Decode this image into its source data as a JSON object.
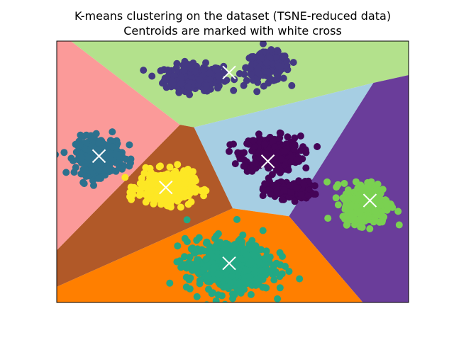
{
  "chart_data": {
    "type": "scatter",
    "title": "K-means clustering on the dataset (TSNE-reduced data)",
    "subtitle": "Centroids are marked with white cross",
    "xlabel": "",
    "ylabel": "",
    "xlim": [
      0,
      100
    ],
    "ylim": [
      0,
      100
    ],
    "axis_ticks": "none",
    "grid": false,
    "legend": "none",
    "regions": [
      {
        "cluster": 0,
        "color": "#b3e18c",
        "polygon": [
          [
            4,
            100
          ],
          [
            100,
            100
          ],
          [
            100,
            87
          ],
          [
            90,
            84
          ],
          [
            39,
            67
          ],
          [
            35,
            68
          ]
        ]
      },
      {
        "cluster": 1,
        "color": "#a6cee3",
        "polygon": [
          [
            39,
            67
          ],
          [
            90,
            84
          ],
          [
            66,
            33
          ],
          [
            50,
            36
          ]
        ]
      },
      {
        "cluster": 2,
        "color": "#6a3d9a",
        "polygon": [
          [
            90,
            84
          ],
          [
            100,
            87
          ],
          [
            100,
            0
          ],
          [
            87,
            0
          ],
          [
            66,
            33
          ]
        ]
      },
      {
        "cluster": 3,
        "color": "#ff7f00",
        "polygon": [
          [
            0,
            6
          ],
          [
            50,
            36
          ],
          [
            66,
            33
          ],
          [
            87,
            0
          ],
          [
            0,
            0
          ]
        ]
      },
      {
        "cluster": 4,
        "color": "#b15928",
        "polygon": [
          [
            35,
            68
          ],
          [
            39,
            67
          ],
          [
            50,
            36
          ],
          [
            0,
            6
          ],
          [
            0,
            20
          ]
        ]
      },
      {
        "cluster": 5,
        "color": "#fb9a99",
        "polygon": [
          [
            0,
            100
          ],
          [
            4,
            100
          ],
          [
            35,
            68
          ],
          [
            0,
            20
          ]
        ]
      }
    ],
    "series": [
      {
        "color": "#443983",
        "center": [
          39,
          86
        ],
        "spread": [
          7.5,
          4.5
        ],
        "count": 260
      },
      {
        "color": "#443983",
        "center": [
          60,
          90
        ],
        "spread": [
          5.5,
          5
        ],
        "count": 200
      },
      {
        "color": "#450457",
        "center": [
          61,
          57
        ],
        "spread": [
          7.5,
          6
        ],
        "count": 320
      },
      {
        "color": "#450457",
        "center": [
          66,
          43
        ],
        "spread": [
          6,
          3
        ],
        "count": 160
      },
      {
        "color": "#2c718e",
        "center": [
          12,
          56
        ],
        "spread": [
          6,
          6.5
        ],
        "count": 300
      },
      {
        "color": "#fde725",
        "center": [
          31,
          44
        ],
        "spread": [
          7,
          5.5
        ],
        "count": 320
      },
      {
        "color": "#7ad151",
        "center": [
          88,
          38
        ],
        "spread": [
          6,
          7
        ],
        "count": 300
      },
      {
        "color": "#22a884",
        "center": [
          49,
          14
        ],
        "spread": [
          11,
          9
        ],
        "count": 520
      }
    ],
    "centroids": [
      [
        49,
        88
      ],
      [
        60,
        54
      ],
      [
        12,
        56
      ],
      [
        31,
        44
      ],
      [
        89,
        39
      ],
      [
        49,
        15
      ]
    ]
  }
}
